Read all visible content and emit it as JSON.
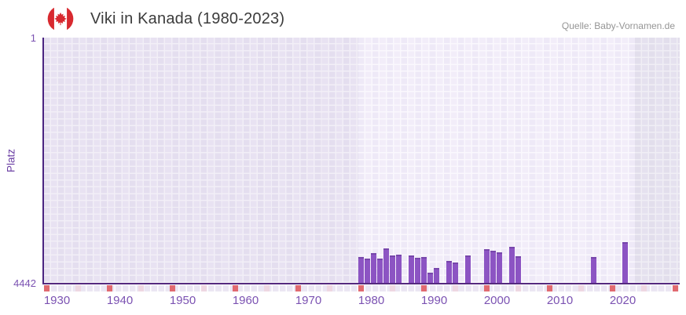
{
  "header": {
    "title": "Viki in Kanada (1980-2023)",
    "source": "Quelle: Baby-Vornamen.de",
    "flag_icon": "canada-flag-icon"
  },
  "chart_data": {
    "type": "bar",
    "title": "Viki in Kanada (1980-2023)",
    "xlabel": "",
    "ylabel": "Platz",
    "y_axis": {
      "min": 1,
      "max": 4442,
      "inverted": true,
      "tick_labels": [
        "1",
        "4442"
      ]
    },
    "x_axis": {
      "tick_labels": [
        "1930",
        "1940",
        "1950",
        "1960",
        "1970",
        "1980",
        "1990",
        "2000",
        "2010",
        "2020"
      ],
      "range": [
        1928,
        2030
      ]
    },
    "highlight_year_range": [
      1980,
      2023
    ],
    "decade_markers": [
      1930,
      1940,
      1950,
      1960,
      1970,
      1980,
      1990,
      2000,
      2010,
      2020,
      2030
    ],
    "half_decade_markers": [
      1935,
      1945,
      1955,
      1965,
      1975,
      1985,
      1995,
      2005,
      2015,
      2025
    ],
    "points": [
      {
        "year": 1980,
        "rank": 3970
      },
      {
        "year": 1981,
        "rank": 4000
      },
      {
        "year": 1982,
        "rank": 3905
      },
      {
        "year": 1983,
        "rank": 4000
      },
      {
        "year": 1984,
        "rank": 3815
      },
      {
        "year": 1985,
        "rank": 3945
      },
      {
        "year": 1986,
        "rank": 3930
      },
      {
        "year": 1988,
        "rank": 3950
      },
      {
        "year": 1989,
        "rank": 3990
      },
      {
        "year": 1990,
        "rank": 3980
      },
      {
        "year": 1991,
        "rank": 4260
      },
      {
        "year": 1992,
        "rank": 4170
      },
      {
        "year": 1994,
        "rank": 4045
      },
      {
        "year": 1995,
        "rank": 4075
      },
      {
        "year": 1997,
        "rank": 3940
      },
      {
        "year": 2000,
        "rank": 3835
      },
      {
        "year": 2001,
        "rank": 3860
      },
      {
        "year": 2002,
        "rank": 3890
      },
      {
        "year": 2004,
        "rank": 3795
      },
      {
        "year": 2005,
        "rank": 3955
      },
      {
        "year": 2017,
        "rank": 3980
      },
      {
        "year": 2022,
        "rank": 3710
      }
    ],
    "legend": null,
    "grid": "checkerboard",
    "colors": {
      "bar": "#8c54c3",
      "bar_top_edge": "#7746ab",
      "axis_line": "#4a2481",
      "baseline": "#55297f",
      "tick_text": "#7b52b2",
      "axis_title_text": "#6b3fa4",
      "title_text": "#3c3c3c",
      "source_text": "#959595",
      "decade_marker": "#e16a70",
      "half_decade_marker": "#eed7e2",
      "flag_red": "#d8292f"
    }
  }
}
